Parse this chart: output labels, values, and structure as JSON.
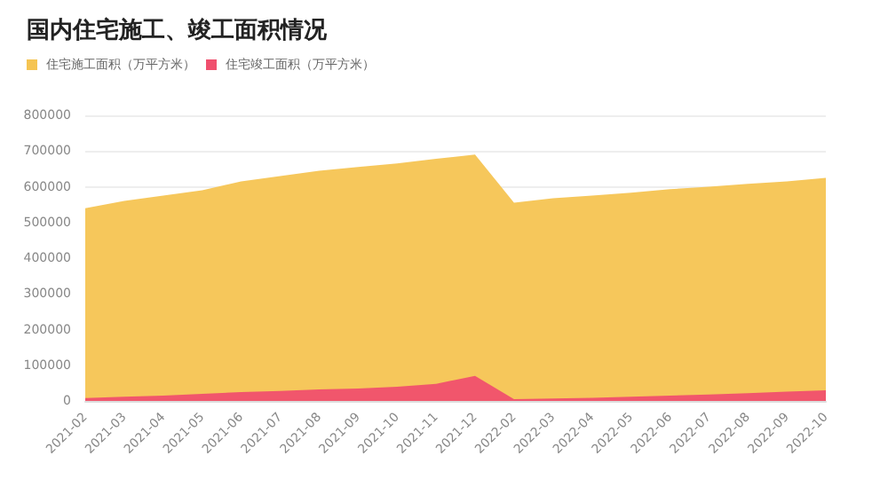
{
  "chart_data": {
    "type": "area",
    "title": "国内住宅施工、竣工面积情况",
    "categories": [
      "2021-02",
      "2021-03",
      "2021-04",
      "2021-05",
      "2021-06",
      "2021-07",
      "2021-08",
      "2021-09",
      "2021-10",
      "2021-11",
      "2021-12",
      "2022-02",
      "2022-03",
      "2022-04",
      "2022-05",
      "2022-06",
      "2022-07",
      "2022-08",
      "2022-09",
      "2022-10"
    ],
    "series": [
      {
        "name": "住宅施工面积（万平方米）",
        "color": "#f5c452",
        "values": [
          540000,
          560000,
          575000,
          590000,
          615000,
          630000,
          645000,
          655000,
          665000,
          678000,
          690000,
          555000,
          568000,
          575000,
          583000,
          593000,
          600000,
          608000,
          615000,
          625000
        ]
      },
      {
        "name": "住宅竣工面积（万平方米）",
        "color": "#f0506e",
        "values": [
          8000,
          12000,
          15000,
          20000,
          25000,
          28000,
          32000,
          35000,
          40000,
          48000,
          70000,
          5000,
          7000,
          9000,
          12000,
          15000,
          18000,
          22000,
          26000,
          30000
        ]
      }
    ],
    "ylim": [
      0,
      800000
    ],
    "yticks": [
      0,
      100000,
      200000,
      300000,
      400000,
      500000,
      600000,
      700000,
      800000
    ],
    "grid": "y",
    "legend": "top left"
  }
}
